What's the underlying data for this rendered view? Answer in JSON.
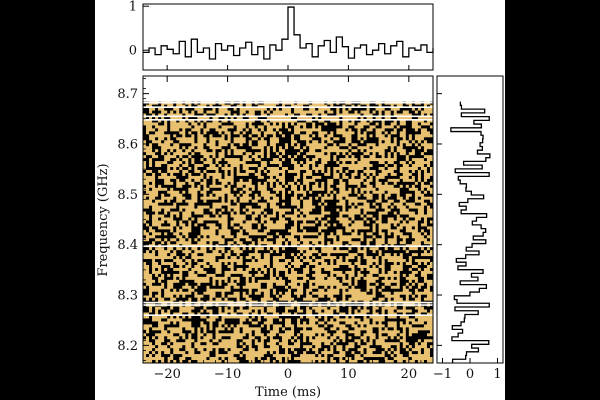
{
  "chart_data": [
    {
      "type": "line",
      "panel": "top time series (step)",
      "x_unit": "ms",
      "xlim": [
        -24,
        24
      ],
      "ylim": [
        -0.45,
        1.05
      ],
      "y_ticks": [
        0,
        1
      ],
      "x": [
        -24,
        -23,
        -22,
        -21,
        -20,
        -19,
        -18,
        -17,
        -16,
        -15,
        -14,
        -13,
        -12,
        -11,
        -10,
        -9,
        -8,
        -7,
        -6,
        -5,
        -4,
        -3,
        -2,
        -1,
        0,
        1,
        2,
        3,
        4,
        5,
        6,
        7,
        8,
        9,
        10,
        11,
        12,
        13,
        14,
        15,
        16,
        17,
        18,
        19,
        20,
        21,
        22,
        23,
        24
      ],
      "y": [
        -0.05,
        0.05,
        -0.1,
        0.1,
        0.02,
        -0.08,
        0.2,
        -0.15,
        0.25,
        -0.05,
        0.05,
        -0.2,
        0.15,
        0.0,
        0.1,
        -0.12,
        0.05,
        0.18,
        -0.1,
        0.08,
        -0.2,
        0.12,
        0.0,
        0.25,
        0.98,
        0.35,
        0.05,
        0.15,
        -0.15,
        0.1,
        0.22,
        -0.05,
        0.3,
        0.08,
        -0.18,
        0.05,
        0.12,
        -0.1,
        0.0,
        0.15,
        -0.08,
        0.1,
        0.2,
        -0.15,
        0.05,
        0.0,
        0.12,
        -0.05,
        0.05
      ]
    },
    {
      "type": "heatmap",
      "panel": "main dynamic spectrum",
      "xlabel": "Time (ms)",
      "ylabel": "Frequency (GHz)",
      "xlim": [
        -24,
        24
      ],
      "ylim": [
        8.165,
        8.735
      ],
      "x_ticks": [
        -20,
        -10,
        0,
        10,
        20
      ],
      "y_ticks": [
        8.2,
        8.3,
        8.4,
        8.5,
        8.6,
        8.7
      ],
      "colormap": [
        "#000000",
        "#e8c170"
      ],
      "masked_channels_GHz": [
        8.26,
        8.28,
        8.285,
        8.397,
        8.648,
        8.655,
        8.673,
        8.682
      ],
      "data_top_GHz": 8.684,
      "burst": {
        "time_ms": 0,
        "freq_range_GHz": [
          8.38,
          8.63
        ]
      },
      "notes": "binary-looking noise pattern; burst column near 0 ms and secondary structure near 7 ms"
    },
    {
      "type": "line",
      "panel": "right spectrum (step)",
      "xlim": [
        -1.2,
        1.2
      ],
      "x_ticks": [
        -1,
        0,
        1
      ],
      "ylim": [
        8.165,
        8.735
      ]
    }
  ],
  "colors": {
    "background": "#000000",
    "panel": "#ffffff",
    "line": "#000000",
    "heat_low": "#000000",
    "heat_high": "#e8c170",
    "mask_line": "#ffffff"
  }
}
